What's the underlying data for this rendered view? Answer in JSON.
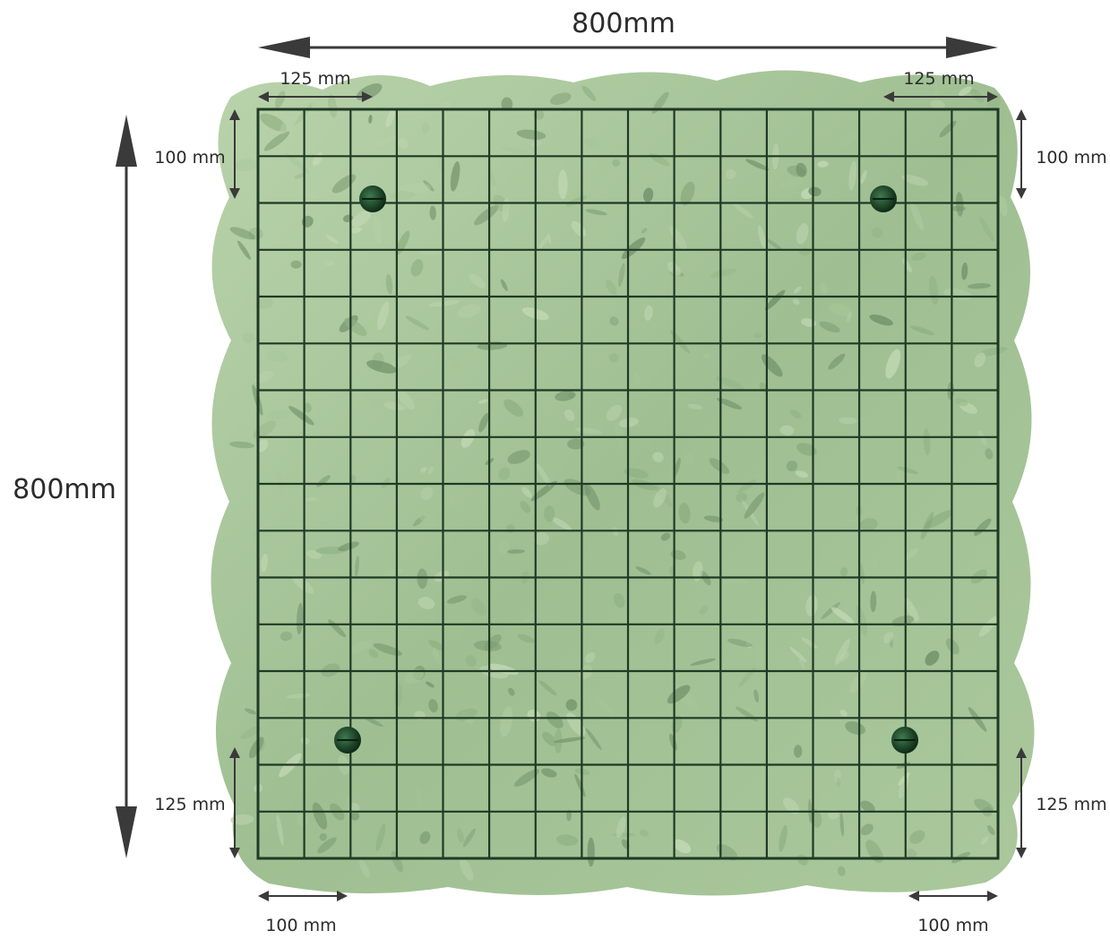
{
  "dimensions": {
    "width_total": "800mm",
    "height_total": "800mm",
    "top_left_width": "125 mm",
    "top_right_width": "125 mm",
    "left_top_height": "100 mm",
    "right_top_height": "100 mm",
    "left_bottom_height": "125 mm",
    "right_bottom_height": "125 mm",
    "bottom_left_width": "100 mm",
    "bottom_right_width": "100 mm"
  },
  "panel": {
    "grid_columns": 16,
    "grid_rows": 16,
    "foliage_color": "#a9c79a",
    "foliage_dark": "#7f9f76",
    "wire_color": "#1f3a25",
    "clip_color": "#1d4a2a"
  }
}
